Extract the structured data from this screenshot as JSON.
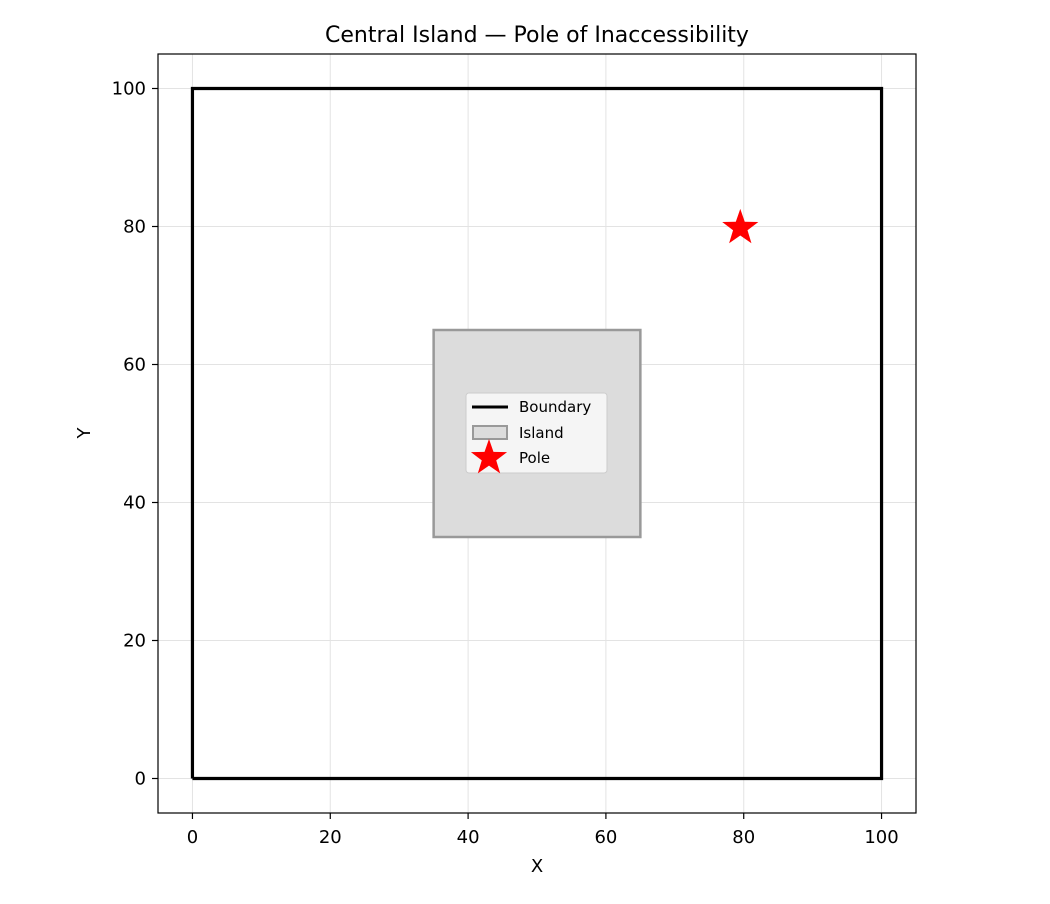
{
  "chart_data": {
    "type": "scatter",
    "title": "Central Island — Pole of Inaccessibility",
    "xlabel": "X",
    "ylabel": "Y",
    "xlim": [
      -5,
      105
    ],
    "ylim": [
      -5,
      105
    ],
    "xticks": [
      0,
      20,
      40,
      60,
      80,
      100
    ],
    "yticks": [
      0,
      20,
      40,
      60,
      80,
      100
    ],
    "grid": true,
    "legend_position": "center",
    "boundary": {
      "name": "Boundary",
      "points": [
        [
          0,
          0
        ],
        [
          100,
          0
        ],
        [
          100,
          100
        ],
        [
          0,
          100
        ],
        [
          0,
          0
        ]
      ],
      "color": "#000000"
    },
    "island": {
      "name": "Island",
      "points": [
        [
          35,
          35
        ],
        [
          65,
          35
        ],
        [
          65,
          65
        ],
        [
          35,
          65
        ],
        [
          35,
          35
        ]
      ],
      "fill": "#dcdcdc",
      "edge": "#999999"
    },
    "pole": {
      "name": "Pole",
      "x": 79.5,
      "y": 79.8,
      "color": "#ff0000",
      "marker": "star"
    }
  }
}
